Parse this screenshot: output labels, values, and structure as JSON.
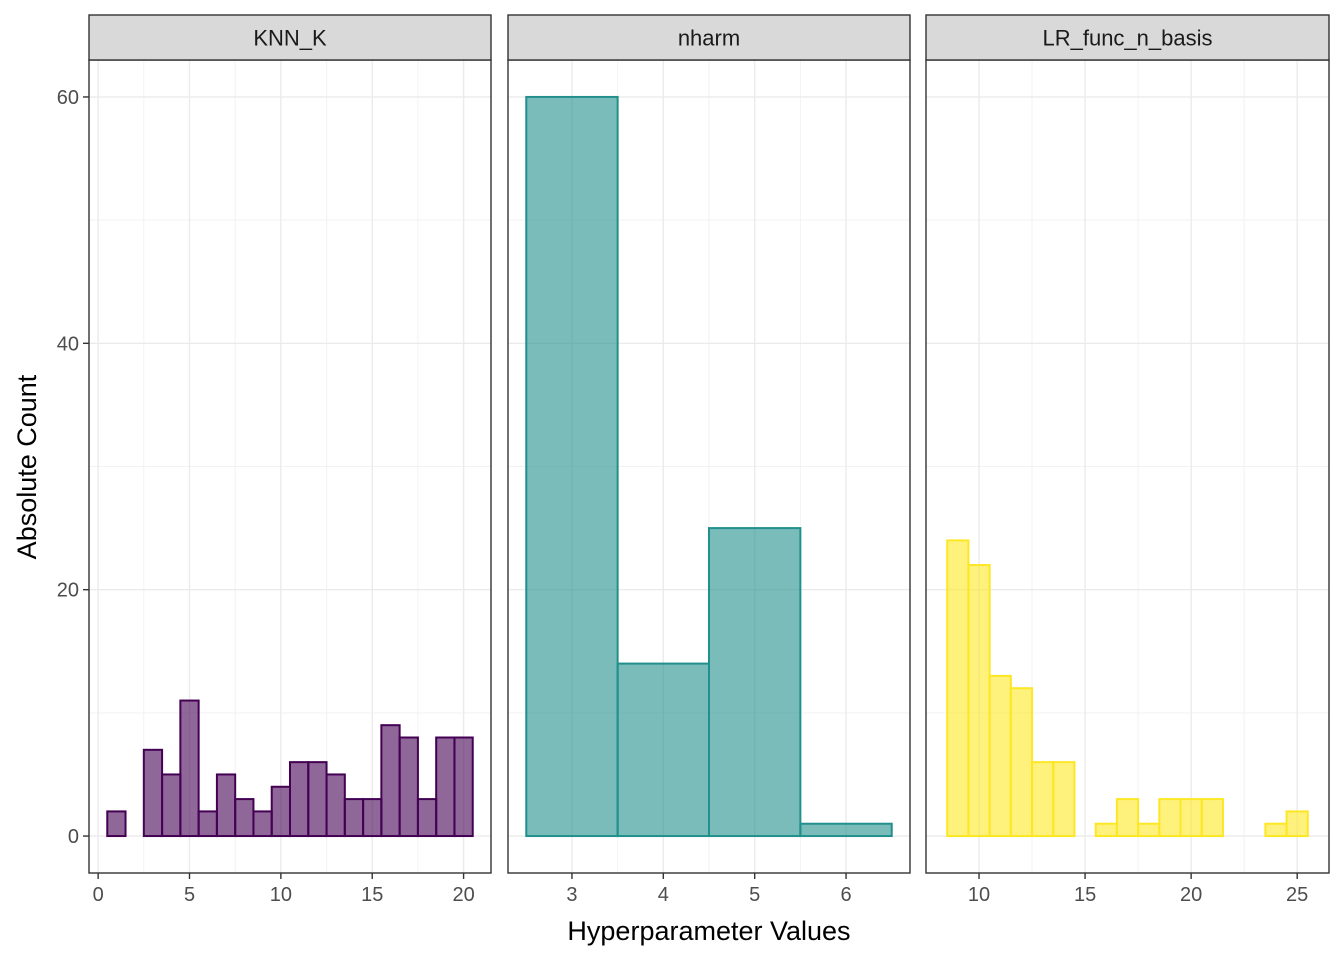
{
  "chart_data": {
    "type": "bar",
    "xlabel": "Hyperparameter Values",
    "ylabel": "Absolute Count",
    "ylim": [
      -3,
      63
    ],
    "y_ticks": [
      0,
      20,
      40,
      60
    ],
    "grid": true,
    "panels": [
      {
        "name": "KNN_K",
        "color": "#440154",
        "fill_opacity": 0.6,
        "xlim": [
          -0.5,
          21.5
        ],
        "x_ticks": [
          0,
          5,
          10,
          15,
          20
        ],
        "bin_width": 1,
        "bins": [
          {
            "x": 1,
            "count": 2
          },
          {
            "x": 2,
            "count": 0
          },
          {
            "x": 3,
            "count": 7
          },
          {
            "x": 4,
            "count": 5
          },
          {
            "x": 5,
            "count": 11
          },
          {
            "x": 6,
            "count": 2
          },
          {
            "x": 7,
            "count": 5
          },
          {
            "x": 8,
            "count": 3
          },
          {
            "x": 9,
            "count": 2
          },
          {
            "x": 10,
            "count": 4
          },
          {
            "x": 11,
            "count": 6
          },
          {
            "x": 12,
            "count": 6
          },
          {
            "x": 13,
            "count": 5
          },
          {
            "x": 14,
            "count": 3
          },
          {
            "x": 15,
            "count": 3
          },
          {
            "x": 16,
            "count": 9
          },
          {
            "x": 17,
            "count": 8
          },
          {
            "x": 18,
            "count": 3
          },
          {
            "x": 19,
            "count": 8
          },
          {
            "x": 20,
            "count": 8
          }
        ]
      },
      {
        "name": "nharm",
        "color": "#21908C",
        "fill_opacity": 0.6,
        "xlim": [
          2.3,
          6.7
        ],
        "x_ticks": [
          3,
          4,
          5,
          6
        ],
        "bin_width": 1,
        "bins": [
          {
            "x": 3,
            "count": 60
          },
          {
            "x": 4,
            "count": 14
          },
          {
            "x": 5,
            "count": 25
          },
          {
            "x": 6,
            "count": 1
          }
        ]
      },
      {
        "name": "LR_func_n_basis",
        "color": "#FDE725",
        "fill_opacity": 0.6,
        "xlim": [
          7.5,
          26.5
        ],
        "x_ticks": [
          10,
          15,
          20,
          25
        ],
        "bin_width": 1,
        "bins": [
          {
            "x": 9,
            "count": 24
          },
          {
            "x": 10,
            "count": 22
          },
          {
            "x": 11,
            "count": 13
          },
          {
            "x": 12,
            "count": 12
          },
          {
            "x": 13,
            "count": 6
          },
          {
            "x": 14,
            "count": 6
          },
          {
            "x": 15,
            "count": 0
          },
          {
            "x": 16,
            "count": 1
          },
          {
            "x": 17,
            "count": 3
          },
          {
            "x": 18,
            "count": 1
          },
          {
            "x": 19,
            "count": 3
          },
          {
            "x": 20,
            "count": 3
          },
          {
            "x": 21,
            "count": 3
          },
          {
            "x": 22,
            "count": 0
          },
          {
            "x": 23,
            "count": 0
          },
          {
            "x": 24,
            "count": 1
          },
          {
            "x": 25,
            "count": 2
          }
        ]
      }
    ]
  }
}
